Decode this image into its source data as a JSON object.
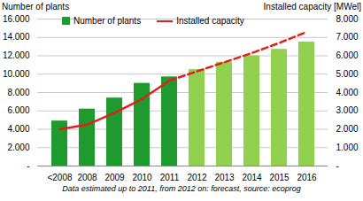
{
  "chart_data": {
    "type": "bar",
    "ylabel": "Number of plants",
    "y2label": "Installed capacity [MWel]",
    "caption": "Data estimated  up to 2011, from 2012 on: forecast,  source: ecoprog",
    "categories": [
      "<2008",
      "2008",
      "2009",
      "2010",
      "2011",
      "2012",
      "2013",
      "2014",
      "2015",
      "2016"
    ],
    "series": [
      {
        "name": "Number of plants",
        "type": "bar",
        "colors": [
          "#1e9a2e",
          "#1e9a2e",
          "#1e9a2e",
          "#1e9a2e",
          "#1e9a2e",
          "#92d050",
          "#92d050",
          "#92d050",
          "#92d050",
          "#92d050"
        ],
        "values": [
          4900,
          6200,
          7400,
          9000,
          9700,
          10500,
          11300,
          12000,
          12700,
          13500
        ]
      },
      {
        "name": "Installed capacity",
        "type": "line",
        "axis": "y2",
        "color": "#e0201b",
        "values": [
          2000,
          2250,
          2900,
          3650,
          4650,
          5150,
          5650,
          6150,
          6700,
          7300
        ]
      }
    ],
    "ylim": [
      0,
      16000
    ],
    "yticks": [
      {
        "value": 0,
        "label": "-"
      },
      {
        "value": 2000,
        "label": "2.000"
      },
      {
        "value": 4000,
        "label": "4.000"
      },
      {
        "value": 6000,
        "label": "6.000"
      },
      {
        "value": 8000,
        "label": "8.000"
      },
      {
        "value": 10000,
        "label": "10.000"
      },
      {
        "value": 12000,
        "label": "12.000"
      },
      {
        "value": 14000,
        "label": "14.000"
      },
      {
        "value": 16000,
        "label": "16.000"
      }
    ],
    "y2lim": [
      0,
      8000
    ],
    "y2ticks": [
      {
        "value": 0,
        "label": "-"
      },
      {
        "value": 1000,
        "label": "1.000"
      },
      {
        "value": 2000,
        "label": "2.000"
      },
      {
        "value": 3000,
        "label": "3.000"
      },
      {
        "value": 4000,
        "label": "4.000"
      },
      {
        "value": 5000,
        "label": "5.000"
      },
      {
        "value": 6000,
        "label": "6.000"
      },
      {
        "value": 7000,
        "label": "7.000"
      },
      {
        "value": 8000,
        "label": "8.000"
      }
    ],
    "grid": true,
    "legend": "top-left"
  }
}
